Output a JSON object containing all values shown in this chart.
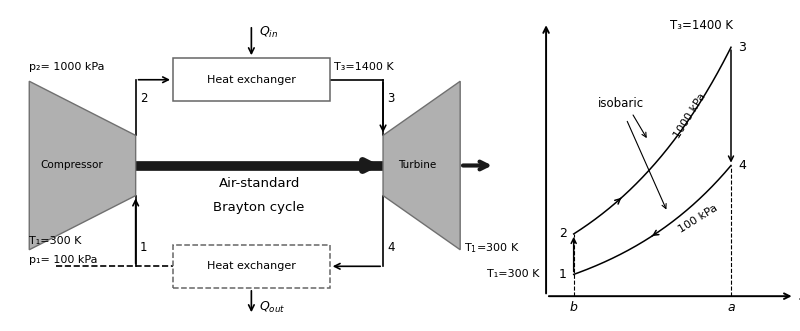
{
  "bg_color": "#ffffff",
  "fig_width": 8.0,
  "fig_height": 3.31,
  "dpi": 100,
  "gray_fill": "#b0b0b0",
  "gray_edge": "#707070",
  "shaft_color": "#1a1a1a",
  "box_edge": "#666666",
  "left_panel": {
    "compressor_label": "Compressor",
    "turbine_label": "Turbine",
    "heat_exchanger_top_label": "Heat exchanger",
    "heat_exchanger_bot_label": "Heat exchanger",
    "cycle_label_line1": "Air-standard",
    "cycle_label_line2": "Brayton cycle",
    "p2_label": "p₂= 1000 kPa",
    "T3_label": "T₃=1400 K",
    "T1_label": "T₁=300 K",
    "p1_label": "p₁= 100 kPa",
    "node1": "1",
    "node2": "2",
    "node3": "3",
    "node4": "4"
  },
  "ts_panel": {
    "T3_label": "T₃=1400 K",
    "T1_label": "T₁=300 K",
    "isobaric_label": "isobaric",
    "p_high_label": "1000 kPa",
    "p_low_label": "100 kPa",
    "node1": "1",
    "node2": "2",
    "node3": "3",
    "node4": "4",
    "xlabel": "s",
    "xb_label": "b",
    "xa_label": "a"
  }
}
